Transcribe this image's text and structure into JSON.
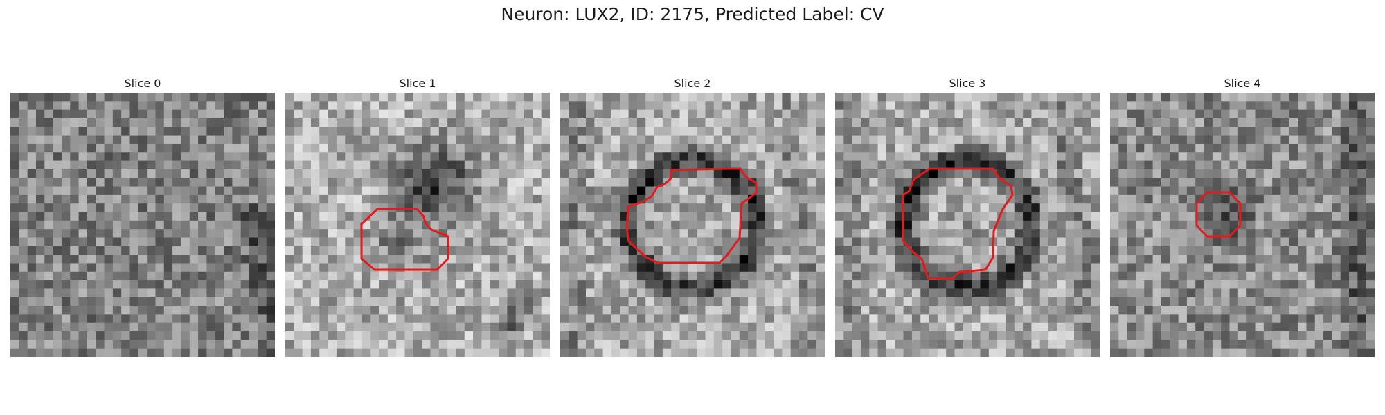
{
  "figure": {
    "title": "Neuron: LUX2, ID: 2175, Predicted Label: CV"
  },
  "panels": [
    {
      "label": "Slice 0",
      "pattern": "noise-plain",
      "contour": false,
      "outline_color": "#e41a1c"
    },
    {
      "label": "Slice 1",
      "pattern": "dark-blob-offset",
      "contour": true,
      "outline_color": "#e41a1c"
    },
    {
      "label": "Slice 2",
      "pattern": "dark-ring-large",
      "contour": true,
      "outline_color": "#e41a1c"
    },
    {
      "label": "Slice 3",
      "pattern": "dark-ring-large",
      "contour": true,
      "outline_color": "#e41a1c"
    },
    {
      "label": "Slice 4",
      "pattern": "small-dark-center",
      "contour": true,
      "outline_color": "#e41a1c"
    }
  ]
}
